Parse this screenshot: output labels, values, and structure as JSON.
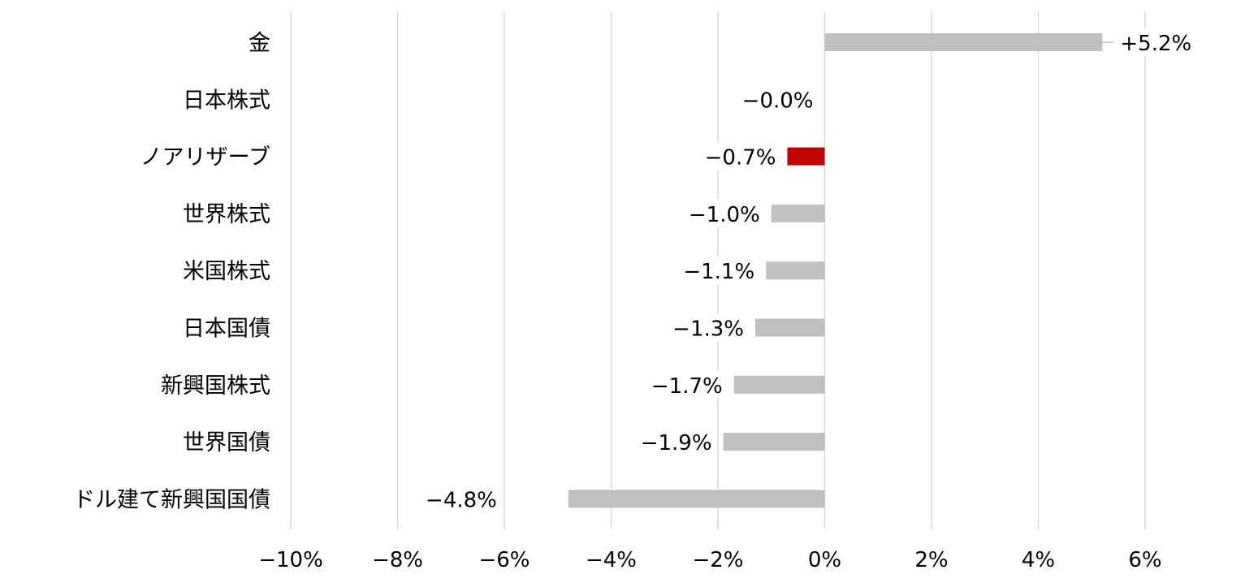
{
  "chart_data": {
    "type": "bar",
    "orientation": "horizontal",
    "title": "",
    "xlabel": "",
    "ylabel": "",
    "categories": [
      "金",
      "日本株式",
      "ノアリザーブ",
      "世界株式",
      "米国株式",
      "日本国債",
      "新興国株式",
      "世界国債",
      "ドル建て新興国国債"
    ],
    "values": [
      5.2,
      -0.0,
      -0.7,
      -1.0,
      -1.1,
      -1.3,
      -1.7,
      -1.9,
      -4.8
    ],
    "data_labels": [
      "+5.2%",
      "−0.0%",
      "−0.7%",
      "−1.0%",
      "−1.1%",
      "−1.3%",
      "−1.7%",
      "−1.9%",
      "−4.8%"
    ],
    "xlim": [
      -10,
      6
    ],
    "xticks": [
      -10,
      -8,
      -6,
      -4,
      -2,
      0,
      2,
      4,
      6
    ],
    "xtick_labels": [
      "−10%",
      "−8%",
      "−6%",
      "−4%",
      "−2%",
      "0%",
      "2%",
      "4%",
      "6%"
    ],
    "grid": "vertical",
    "legend": "none",
    "colors": {
      "default_bar": "#c0c0c0",
      "highlight_bar": "#c00000",
      "gridline": "#d9d9d9"
    },
    "highlight_category": "ノアリザーブ"
  }
}
